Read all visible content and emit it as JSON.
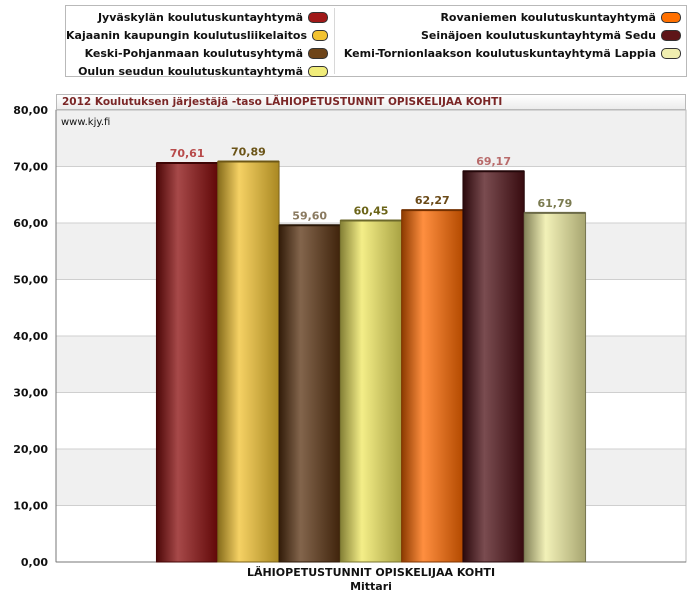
{
  "legend": {
    "left": [
      {
        "label": "Jyväskylän koulutuskuntayhtymä",
        "color": "#a01818"
      },
      {
        "label": "Kajaanin kaupungin koulutusliikelaitos",
        "color": "#f2c230"
      },
      {
        "label": "Keski-Pohjanmaan koulutusyhtymä",
        "color": "#6e4418"
      },
      {
        "label": "Oulun seudun koulutuskuntayhtymä",
        "color": "#f0ec7a"
      }
    ],
    "right": [
      {
        "label": "Rovaniemen koulutuskuntayhtymä",
        "color": "#ff7000"
      },
      {
        "label": "Seinäjoen koulutuskuntayhtymä Sedu",
        "color": "#5e1518"
      },
      {
        "label": "Kemi-Tornionlaakson koulutuskuntayhtymä Lappia",
        "color": "#f0eeb0"
      }
    ]
  },
  "chart_title": "2012 Koulutuksen järjestäjä -taso LÄHIOPETUSTUNNIT OPISKELIJAA KOHTI",
  "source": "www.kjy.fi",
  "chart_data": {
    "type": "bar",
    "title": "2012 Koulutuksen järjestäjä -taso LÄHIOPETUSTUNNIT OPISKELIJAA KOHTI",
    "categories": [
      "LÄHIOPETUSTUNNIT OPISKELIJAA KOHTI"
    ],
    "xlabel": "Mittari",
    "ylabel": "",
    "ylim": [
      0,
      80
    ],
    "yticks": [
      "0,00",
      "10,00",
      "20,00",
      "30,00",
      "40,00",
      "50,00",
      "60,00",
      "70,00",
      "80,00"
    ],
    "grid": true,
    "legend_position": "top",
    "series": [
      {
        "name": "Jyväskylän koulutuskuntayhtymä",
        "values": [
          70.61
        ],
        "label": "70,61",
        "color": "#8a0c0c",
        "label_color": "#b84b4b"
      },
      {
        "name": "Kajaanin kaupungin koulutusliikelaitos",
        "values": [
          70.89
        ],
        "label": "70,89",
        "color": "#f2c230",
        "label_color": "#6b5418"
      },
      {
        "name": "Keski-Pohjanmaan koulutusyhtymä",
        "values": [
          59.6
        ],
        "label": "59,60",
        "color": "#5a3210",
        "label_color": "#8a7a60"
      },
      {
        "name": "Oulun seudun koulutuskuntayhtymä",
        "values": [
          60.45
        ],
        "label": "60,45",
        "color": "#f0e860",
        "label_color": "#6b6418"
      },
      {
        "name": "Rovaniemen koulutuskuntayhtymä",
        "values": [
          62.27
        ],
        "label": "62,27",
        "color": "#ff6a00",
        "label_color": "#6b4a18"
      },
      {
        "name": "Seinäjoen koulutuskuntayhtymä Sedu",
        "values": [
          69.17
        ],
        "label": "69,17",
        "color": "#4e1015",
        "label_color": "#b86a6a"
      },
      {
        "name": "Kemi-Tornionlaakson koulutuskuntayhtymä Lappia",
        "values": [
          61.79
        ],
        "label": "61,79",
        "color": "#eeeca0",
        "label_color": "#7a7a50"
      }
    ]
  }
}
